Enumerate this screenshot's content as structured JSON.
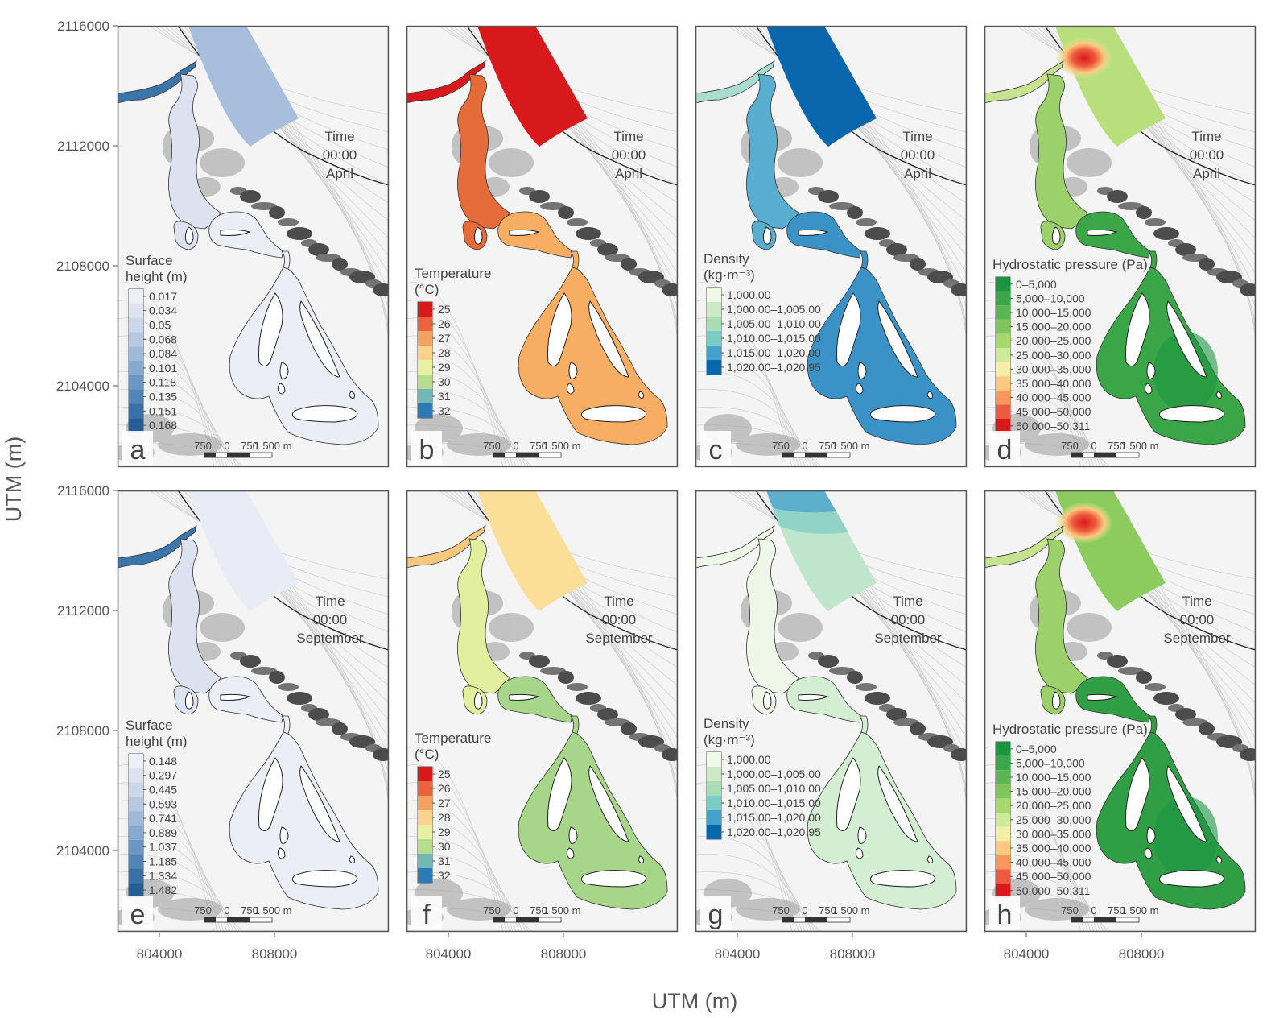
{
  "figure": {
    "x_axis_title": "UTM (m)",
    "y_axis_title": "UTM (m)",
    "x_ticks": [
      "804000",
      "808000"
    ],
    "y_ticks": [
      "2116000",
      "2112000",
      "2108000",
      "2104000"
    ],
    "scale_bar": {
      "labels": [
        "750",
        "0",
        "750",
        "1 500 m"
      ]
    },
    "time_label": "Time",
    "time_value": "00:00",
    "months": {
      "april": "April",
      "september": "September"
    }
  },
  "panels": [
    {
      "letter": "a",
      "month": "April",
      "variable": "surface_height",
      "legend_title": [
        "Surface",
        "height (m)"
      ],
      "legend_labels": [
        "0.017",
        "0.034",
        "0.05",
        "0.068",
        "0.084",
        "0.101",
        "0.118",
        "0.135",
        "0.151",
        "0.168"
      ],
      "colors": [
        "#eef0f8",
        "#dfe3f0",
        "#cdd7ea",
        "#b7c9e2",
        "#a0bad9",
        "#86a9cf",
        "#6c97c4",
        "#5284b8",
        "#3a70a8",
        "#255d96"
      ],
      "sea_color": "#a7bfdc",
      "river_color": "#3a76ab",
      "lagoon_color": "#eceef7",
      "channel_color": "#dde2f0",
      "transparent": false
    },
    {
      "letter": "b",
      "month": "April",
      "variable": "temperature",
      "legend_title": [
        "Temperature",
        "(°C)"
      ],
      "legend_labels": [
        "25",
        "26",
        "27",
        "28",
        "29",
        "30",
        "31",
        "32"
      ],
      "colors": [
        "#d7191c",
        "#ea633e",
        "#f4a261",
        "#fbd38c",
        "#e9f0a0",
        "#b6dd90",
        "#6fb8b5",
        "#2c7bb6"
      ],
      "sea_color": "#d7191c",
      "river_color": "#d7191c",
      "lagoon_color": "#f7ae63",
      "channel_color": "#e56b3a",
      "transparent": false
    },
    {
      "letter": "c",
      "month": "April",
      "variable": "density",
      "legend_title": [
        "Density",
        "(kg·m⁻³)"
      ],
      "legend_labels": [
        "1,000.00",
        "1,000.00–1,005.00",
        "1,005.00–1,010.00",
        "1,010.00–1,015.00",
        "1,015.00–1,020.00",
        "1,020.00–1,020.95"
      ],
      "colors": [
        "#f0f9e8",
        "#ccebc5",
        "#a8ddb5",
        "#7bccc4",
        "#43a2ca",
        "#0868ac"
      ],
      "sea_color": "#0b67ad",
      "river_color": "#a8ddd0",
      "lagoon_color": "#3b92c7",
      "channel_color": "#59aecf",
      "transparent": false
    },
    {
      "letter": "d",
      "month": "April",
      "variable": "hydrostatic_pressure",
      "legend_title": [
        "Hydrostatic pressure (Pa)"
      ],
      "legend_labels": [
        "0–5,000",
        "5,000–10,000",
        "10,000–15,000",
        "15,000–20,000",
        "20,000–25,000",
        "25,000–30,000",
        "30,000–35,000",
        "35,000–40,000",
        "40,000–45,000",
        "45,000–50,000",
        "50,000–50,311"
      ],
      "colors": [
        "#1a9641",
        "#39a84a",
        "#5ab653",
        "#7fc65a",
        "#a6d96a",
        "#cfe99a",
        "#f4efa6",
        "#fdc97f",
        "#f9965a",
        "#ee5a3d",
        "#d7191c"
      ],
      "sea_color": "#b9df7c",
      "river_color": "#c7e291",
      "lagoon_color": "#3aa648",
      "channel_color": "#9cd06a",
      "transparent": false
    },
    {
      "letter": "e",
      "month": "September",
      "variable": "surface_height",
      "legend_title": [
        "Surface",
        "height (m)"
      ],
      "legend_labels": [
        "0.148",
        "0.297",
        "0.445",
        "0.593",
        "0.741",
        "0.889",
        "1.037",
        "1.185",
        "1.334",
        "1.482"
      ],
      "colors": [
        "#eef0f8",
        "#dfe3f0",
        "#cdd7ea",
        "#b7c9e2",
        "#a0bad9",
        "#86a9cf",
        "#6c97c4",
        "#5284b8",
        "#3a70a8",
        "#255d96"
      ],
      "sea_color": "#e9ebf6",
      "river_color": "#3a76ab",
      "lagoon_color": "#eceef7",
      "channel_color": "#dde2f0",
      "transparent": false
    },
    {
      "letter": "f",
      "month": "September",
      "variable": "temperature",
      "legend_title": [
        "Temperature",
        "(°C)"
      ],
      "legend_labels": [
        "25",
        "26",
        "27",
        "28",
        "29",
        "30",
        "31",
        "32"
      ],
      "colors": [
        "#d7191c",
        "#ea633e",
        "#f4a261",
        "#fbd38c",
        "#e9f0a0",
        "#b6dd90",
        "#6fb8b5",
        "#2c7bb6"
      ],
      "sea_color": "#fbdf98",
      "river_color": "#f6c77f",
      "lagoon_color": "#a7d58a",
      "channel_color": "#e2ef9f",
      "transparent": false
    },
    {
      "letter": "g",
      "month": "September",
      "variable": "density",
      "legend_title": [
        "Density",
        "(kg·m⁻³)"
      ],
      "legend_labels": [
        "1,000.00",
        "1,000.00–1,005.00",
        "1,005.00–1,010.00",
        "1,010.00–1,015.00",
        "1,015.00–1,020.00",
        "1,020.00–1,020.95"
      ],
      "colors": [
        "#f0f9e8",
        "#ccebc5",
        "#a8ddb5",
        "#7bccc4",
        "#43a2ca",
        "#0868ac"
      ],
      "sea_color": "#bfe6cc",
      "river_color": "#eef7e8",
      "lagoon_color": "#d4eed3",
      "channel_color": "#eef7e8",
      "transparent": false
    },
    {
      "letter": "h",
      "month": "September",
      "variable": "hydrostatic_pressure",
      "legend_title": [
        "Hydrostatic pressure (Pa)"
      ],
      "legend_labels": [
        "0–5,000",
        "5,000–10,000",
        "10,000–15,000",
        "15,000–20,000",
        "20,000–25,000",
        "25,000–30,000",
        "30,000–35,000",
        "35,000–40,000",
        "40,000–45,000",
        "45,000–50,000",
        "50,000–50,311"
      ],
      "colors": [
        "#1a9641",
        "#39a84a",
        "#5ab653",
        "#7fc65a",
        "#a6d96a",
        "#cfe99a",
        "#f4efa6",
        "#fdc97f",
        "#f9965a",
        "#ee5a3d",
        "#d7191c"
      ],
      "sea_color": "#8ccb5d",
      "river_color": "#c7e291",
      "lagoon_color": "#2f9e44",
      "channel_color": "#9cd06a",
      "transparent": false
    }
  ]
}
